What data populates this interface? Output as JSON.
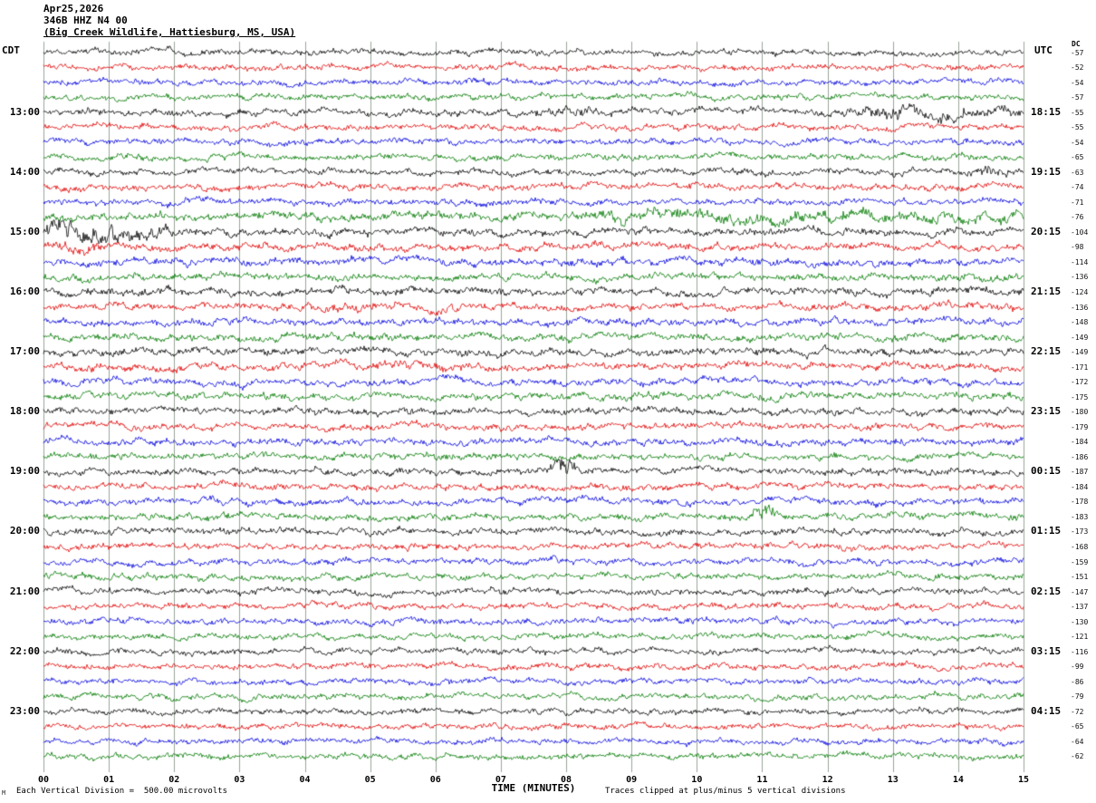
{
  "title": {
    "line1": "Apr25,2026",
    "line2": "346B HHZ N4 00",
    "line3": "(Big Creek Wildlife, Hattiesburg, MS, USA)"
  },
  "axes": {
    "left_header": "CDT",
    "right_header": "UTC",
    "dc_header": "DC",
    "x_label": "TIME (MINUTES)",
    "x_ticks": [
      "00",
      "01",
      "02",
      "03",
      "04",
      "05",
      "06",
      "07",
      "08",
      "09",
      "10",
      "11",
      "12",
      "13",
      "14",
      "15"
    ]
  },
  "footer": {
    "left": "Each Vertical Division =  500.00 microvolts",
    "right": "Traces clipped at plus/minus 5 vertical divisions",
    "corner": "M"
  },
  "chart_data": {
    "type": "line",
    "subtype": "helicorder-seismogram",
    "date": "Apr25,2026",
    "station": "346B HHZ N4 00",
    "station_location": "Big Creek Wildlife, Hattiesburg, MS, USA",
    "x_axis": {
      "label": "TIME (MINUTES)",
      "min": 0,
      "max": 15,
      "tick_labels": [
        "00",
        "01",
        "02",
        "03",
        "04",
        "05",
        "06",
        "07",
        "08",
        "09",
        "10",
        "11",
        "12",
        "13",
        "14",
        "15"
      ]
    },
    "minutes_per_row": 15,
    "num_rows": 48,
    "grid": true,
    "grid_color": "#9aa49a",
    "trace_color_cycle": [
      "#000000",
      "#e00000",
      "#0000dd",
      "#007a00"
    ],
    "left_time_labels": [
      {
        "row": 4,
        "label": "13:00"
      },
      {
        "row": 8,
        "label": "14:00"
      },
      {
        "row": 12,
        "label": "15:00"
      },
      {
        "row": 16,
        "label": "16:00"
      },
      {
        "row": 20,
        "label": "17:00"
      },
      {
        "row": 24,
        "label": "18:00"
      },
      {
        "row": 28,
        "label": "19:00"
      },
      {
        "row": 32,
        "label": "20:00"
      },
      {
        "row": 36,
        "label": "21:00"
      },
      {
        "row": 40,
        "label": "22:00"
      },
      {
        "row": 44,
        "label": "23:00"
      }
    ],
    "right_time_labels": [
      {
        "row": 4,
        "label": "18:15"
      },
      {
        "row": 8,
        "label": "19:15"
      },
      {
        "row": 12,
        "label": "20:15"
      },
      {
        "row": 16,
        "label": "21:15"
      },
      {
        "row": 20,
        "label": "22:15"
      },
      {
        "row": 24,
        "label": "23:15"
      },
      {
        "row": 28,
        "label": "00:15"
      },
      {
        "row": 32,
        "label": "01:15"
      },
      {
        "row": 36,
        "label": "02:15"
      },
      {
        "row": 40,
        "label": "03:15"
      },
      {
        "row": 44,
        "label": "04:15"
      }
    ],
    "dc_offsets": [
      -57,
      -52,
      -54,
      -57,
      -55,
      -55,
      -54,
      -65,
      -63,
      -74,
      -71,
      -76,
      -104,
      -98,
      -114,
      -136,
      -124,
      -136,
      -148,
      -149,
      -149,
      -171,
      -172,
      -175,
      -180,
      -179,
      -184,
      -186,
      -187,
      -184,
      -178,
      -183,
      -173,
      -168,
      -159,
      -151,
      -147,
      -137,
      -130,
      -121,
      -116,
      -99,
      -86,
      -79,
      -72,
      -65,
      -64,
      -62
    ],
    "scale_note": "Each Vertical Division =  500.00 microvolts",
    "clip_note": "Traces clipped at plus/minus 5 vertical divisions",
    "row_relative_amplitude": [
      1.0,
      1.0,
      1.0,
      1.0,
      1.1,
      1.0,
      1.0,
      1.05,
      1.05,
      1.1,
      1.05,
      1.35,
      1.25,
      1.2,
      1.25,
      1.2,
      1.25,
      1.2,
      1.2,
      1.25,
      1.25,
      1.2,
      1.2,
      1.2,
      1.15,
      1.1,
      1.15,
      1.1,
      1.1,
      1.1,
      1.1,
      1.1,
      1.1,
      1.05,
      1.05,
      1.05,
      1.05,
      1.0,
      1.05,
      1.0,
      1.0,
      1.0,
      1.0,
      1.0,
      0.95,
      0.95,
      0.95,
      0.95
    ],
    "activity_bursts": [
      {
        "row": 4,
        "start_min": 12.1,
        "end_min": 15.0,
        "gain": 2.1
      },
      {
        "row": 4,
        "start_min": 7.5,
        "end_min": 8.5,
        "gain": 1.6
      },
      {
        "row": 8,
        "start_min": 14.1,
        "end_min": 15.0,
        "gain": 1.7
      },
      {
        "row": 11,
        "start_min": 7.8,
        "end_min": 15.0,
        "gain": 1.6
      },
      {
        "row": 12,
        "start_min": 0.0,
        "end_min": 2.2,
        "gain": 2.5
      },
      {
        "row": 12,
        "start_min": 0.0,
        "end_min": 0.8,
        "gain": 3.2
      },
      {
        "row": 13,
        "start_min": 0.0,
        "end_min": 1.0,
        "gain": 1.5
      },
      {
        "row": 17,
        "start_min": 4.0,
        "end_min": 6.5,
        "gain": 1.3
      },
      {
        "row": 21,
        "start_min": 5.0,
        "end_min": 7.0,
        "gain": 1.3
      },
      {
        "row": 28,
        "start_min": 7.75,
        "end_min": 8.2,
        "gain": 3.0
      },
      {
        "row": 31,
        "start_min": 10.85,
        "end_min": 11.2,
        "gain": 2.6
      }
    ]
  }
}
